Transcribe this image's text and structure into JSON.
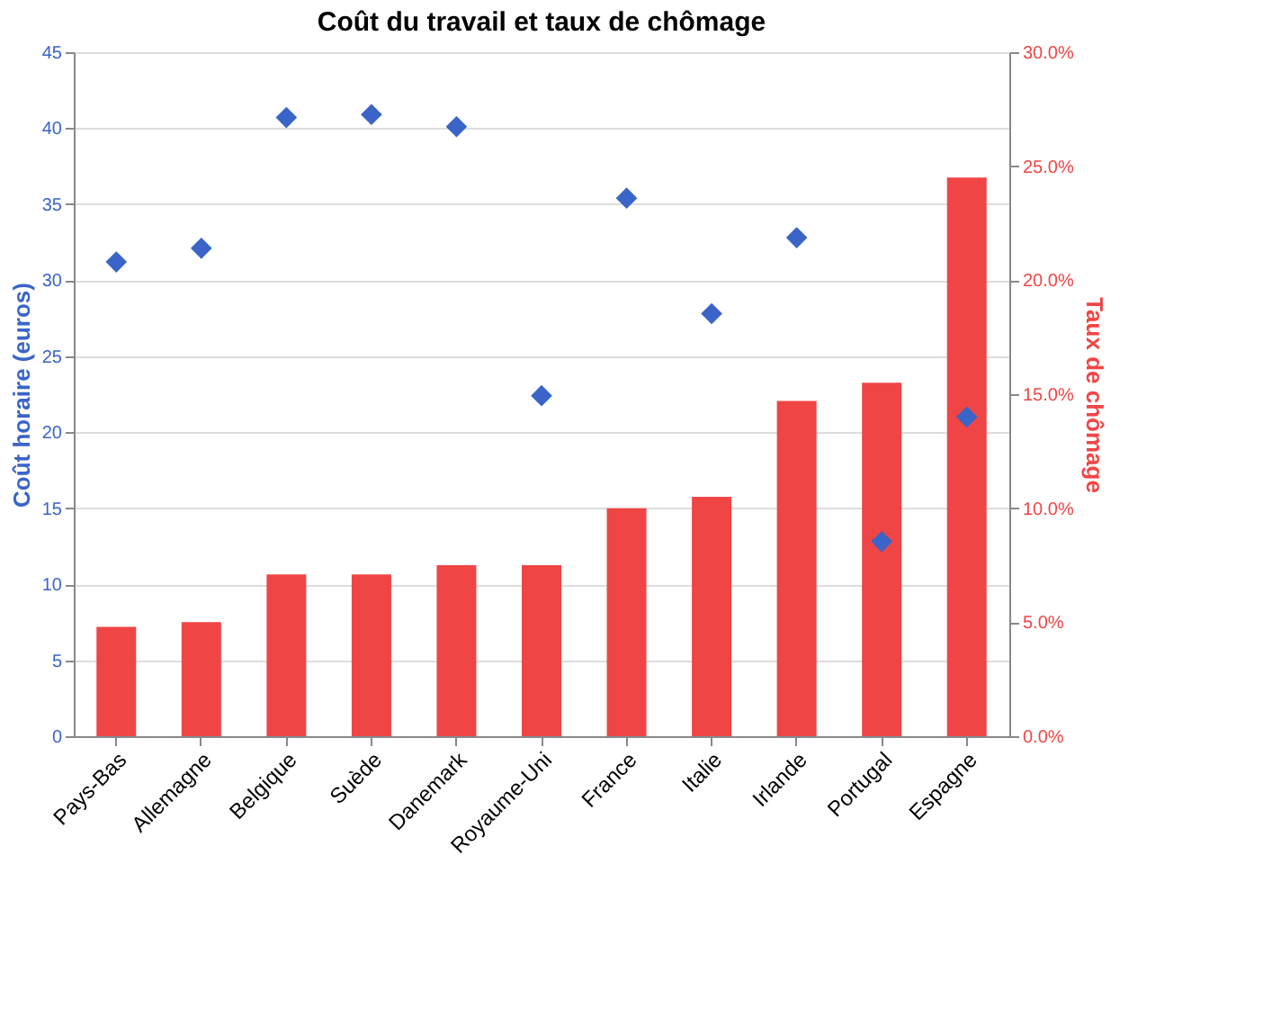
{
  "chart_data": {
    "type": "bar",
    "title": "Coût du travail et taux de chômage",
    "ylabel": "Coût horaire (euros)",
    "y2label": "Taux de chômage",
    "categories": [
      "Pays-Bas",
      "Allemagne",
      "Belgique",
      "Suède",
      "Danemark",
      "Royaume-Uni",
      "France",
      "Italie",
      "Irlande",
      "Portugal",
      "Espagne"
    ],
    "series": [
      {
        "axis": "y2",
        "color": "#f04545",
        "values": [
          4.8,
          5.0,
          7.1,
          7.1,
          7.5,
          7.5,
          10.0,
          10.5,
          14.7,
          15.5,
          24.5
        ]
      },
      {
        "type": "scatter",
        "axis": "y",
        "marker": "diamond",
        "color": "#3a64c8",
        "values": [
          31.2,
          32.1,
          40.7,
          40.9,
          40.1,
          22.4,
          35.4,
          27.8,
          32.8,
          12.8,
          21.0
        ]
      }
    ],
    "ylim": [
      0,
      45
    ],
    "yticks": [
      0,
      5,
      10,
      15,
      20,
      25,
      30,
      35,
      40,
      45
    ],
    "y2lim": [
      0,
      30
    ],
    "y2ticks": [
      {
        "value": 0,
        "label": "0.0%"
      },
      {
        "value": 5,
        "label": "5.0%"
      },
      {
        "value": 10,
        "label": "10.0%"
      },
      {
        "value": 15,
        "label": "15.0%"
      },
      {
        "value": 20,
        "label": "20.0%"
      },
      {
        "value": 25,
        "label": "25.0%"
      },
      {
        "value": 30,
        "label": "30.0%"
      }
    ],
    "grid": "y"
  }
}
